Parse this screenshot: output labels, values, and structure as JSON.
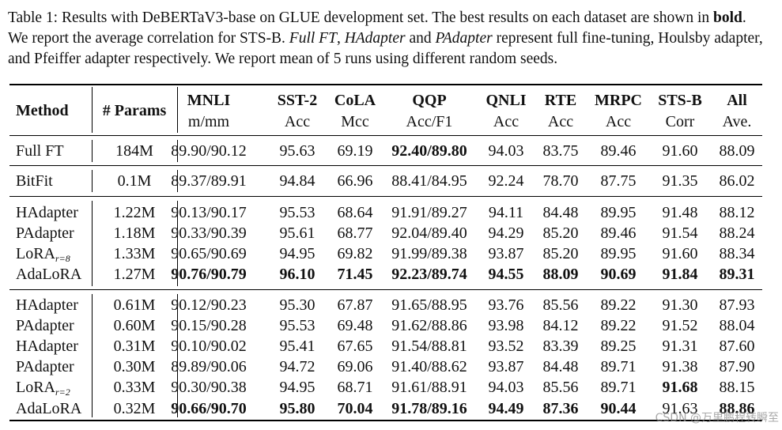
{
  "caption": {
    "part1": "Table 1: Results with DeBERTaV3-base on GLUE development set. The best results on each dataset are shown in ",
    "bold_word": "bold",
    "part2": ". We report the average correlation for STS-B. ",
    "full_ft": "Full FT",
    "comma": ", ",
    "hadapter": "HAdapter",
    "and": " and ",
    "padapter": "PAdapter",
    "part3": " represent full fine-tuning, Houlsby adapter, and Pfeiffer adapter respectively. We report mean of 5 runs using different random seeds."
  },
  "table": {
    "headers": {
      "method": "Method",
      "params": "# Params",
      "columns": [
        {
          "name": "MNLI",
          "metric": "m/mm"
        },
        {
          "name": "SST-2",
          "metric": "Acc"
        },
        {
          "name": "CoLA",
          "metric": "Mcc"
        },
        {
          "name": "QQP",
          "metric": "Acc/F1"
        },
        {
          "name": "QNLI",
          "metric": "Acc"
        },
        {
          "name": "RTE",
          "metric": "Acc"
        },
        {
          "name": "MRPC",
          "metric": "Acc"
        },
        {
          "name": "STS-B",
          "metric": "Corr"
        },
        {
          "name": "All",
          "metric": "Ave."
        }
      ]
    },
    "rows": [
      {
        "method": "Full FT",
        "params": "184M",
        "values": [
          "89.90/90.12",
          "95.63",
          "69.19",
          "92.40/89.80",
          "94.03",
          "83.75",
          "89.46",
          "91.60",
          "88.09"
        ],
        "bold": [
          3
        ]
      },
      {
        "method": "BitFit",
        "params": "0.1M",
        "values": [
          "89.37/89.91",
          "94.84",
          "66.96",
          "88.41/84.95",
          "92.24",
          "78.70",
          "87.75",
          "91.35",
          "86.02"
        ],
        "bold": []
      },
      {
        "method": "HAdapter",
        "params": "1.22M",
        "values": [
          "90.13/90.17",
          "95.53",
          "68.64",
          "91.91/89.27",
          "94.11",
          "84.48",
          "89.95",
          "91.48",
          "88.12"
        ],
        "bold": []
      },
      {
        "method": "PAdapter",
        "params": "1.18M",
        "values": [
          "90.33/90.39",
          "95.61",
          "68.77",
          "92.04/89.40",
          "94.29",
          "85.20",
          "89.46",
          "91.54",
          "88.24"
        ],
        "bold": []
      },
      {
        "method": "LoRA",
        "sub": "r=8",
        "params": "1.33M",
        "values": [
          "90.65/90.69",
          "94.95",
          "69.82",
          "91.99/89.38",
          "93.87",
          "85.20",
          "89.95",
          "91.60",
          "88.34"
        ],
        "bold": []
      },
      {
        "method": "AdaLoRA",
        "params": "1.27M",
        "values": [
          "90.76/90.79",
          "96.10",
          "71.45",
          "92.23/89.74",
          "94.55",
          "88.09",
          "90.69",
          "91.84",
          "89.31"
        ],
        "bold": [
          0,
          1,
          2,
          3,
          4,
          5,
          6,
          7,
          8
        ]
      },
      {
        "method": "HAdapter",
        "params": "0.61M",
        "values": [
          "90.12/90.23",
          "95.30",
          "67.87",
          "91.65/88.95",
          "93.76",
          "85.56",
          "89.22",
          "91.30",
          "87.93"
        ],
        "bold": []
      },
      {
        "method": "PAdapter",
        "params": "0.60M",
        "values": [
          "90.15/90.28",
          "95.53",
          "69.48",
          "91.62/88.86",
          "93.98",
          "84.12",
          "89.22",
          "91.52",
          "88.04"
        ],
        "bold": []
      },
      {
        "method": "HAdapter",
        "params": "0.31M",
        "values": [
          "90.10/90.02",
          "95.41",
          "67.65",
          "91.54/88.81",
          "93.52",
          "83.39",
          "89.25",
          "91.31",
          "87.60"
        ],
        "bold": []
      },
      {
        "method": "PAdapter",
        "params": "0.30M",
        "values": [
          "89.89/90.06",
          "94.72",
          "69.06",
          "91.40/88.62",
          "93.87",
          "84.48",
          "89.71",
          "91.38",
          "87.90"
        ],
        "bold": []
      },
      {
        "method": "LoRA",
        "sub": "r=2",
        "params": "0.33M",
        "values": [
          "90.30/90.38",
          "94.95",
          "68.71",
          "91.61/88.91",
          "94.03",
          "85.56",
          "89.71",
          "91.68",
          "88.15"
        ],
        "bold": [
          7
        ]
      },
      {
        "method": "AdaLoRA",
        "params": "0.32M",
        "values": [
          "90.66/90.70",
          "95.80",
          "70.04",
          "91.78/89.16",
          "94.49",
          "87.36",
          "90.44",
          "91.63",
          "88.86"
        ],
        "bold": [
          0,
          1,
          2,
          3,
          4,
          5,
          6,
          8
        ]
      }
    ]
  },
  "watermark": "CSDN @万里鹏程转瞬至"
}
